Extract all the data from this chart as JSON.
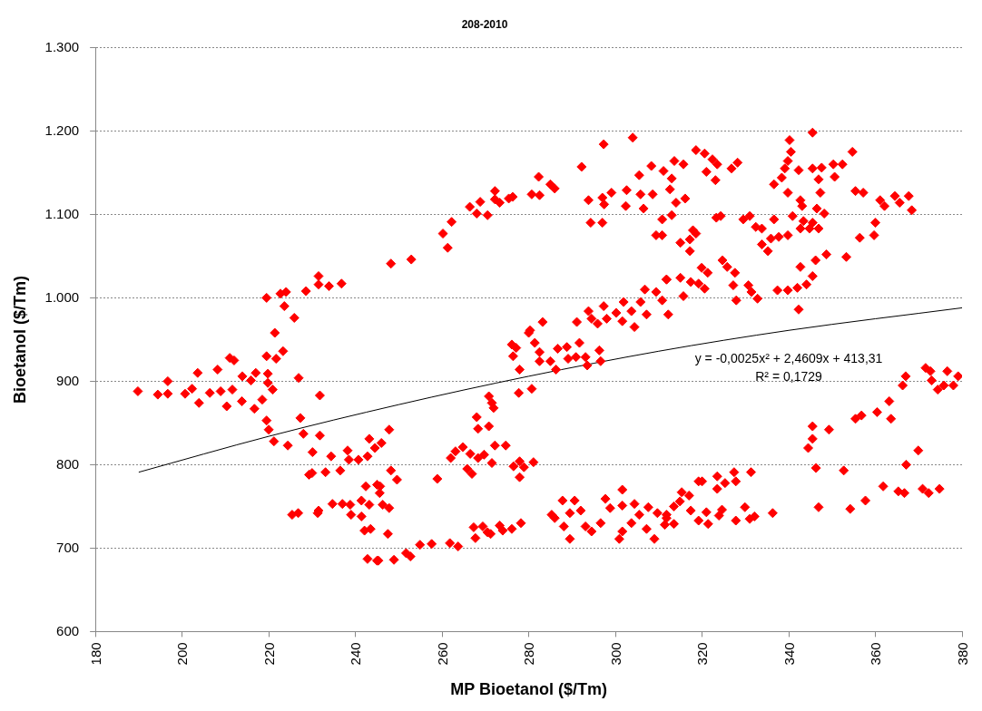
{
  "chart_data": {
    "type": "scatter",
    "title": "208-2010",
    "xlabel": "MP Bioetanol ($/Tm)",
    "ylabel": "Bioetanol ($/Tm)",
    "xlim": [
      180,
      380
    ],
    "xticks": [
      180,
      200,
      220,
      240,
      260,
      280,
      300,
      320,
      340,
      360,
      380
    ],
    "ylim": [
      600,
      1300
    ],
    "yticks": [
      600,
      700,
      800,
      900,
      {
        "value": 1000,
        "label": "1.000"
      },
      {
        "value": 1100,
        "label": "1.100"
      },
      {
        "value": 1200,
        "label": "1.200"
      },
      {
        "value": 1300,
        "label": "1.300"
      }
    ],
    "grid": "y",
    "legend": false,
    "marker": "diamond",
    "annotations": [
      "y = -0,0025x² + 2,4609x + 413,31",
      "R² = 0,1729"
    ],
    "series": [
      {
        "type": "scatter",
        "color": "#ff0000",
        "x": [
          189.8,
          194.4,
          196.7,
          196.7,
          200.7,
          202.3,
          203.6,
          203.9,
          206.4,
          208.2,
          208.9,
          210.3,
          211,
          212,
          211.6,
          213.8,
          213.9,
          215.9,
          217,
          216.7,
          218.5,
          219.5,
          219.5,
          219.8,
          219.8,
          220.9,
          219.5,
          220,
          221.2,
          221.4,
          221.7,
          223.3,
          222.7,
          224,
          223.6,
          225.9,
          224.4,
          226.9,
          228,
          227.3,
          228.6,
          231.5,
          231.5,
          233.9,
          236.8,
          231.8,
          231.8,
          230.1,
          229.3,
          230,
          233.1,
          234.4,
          236.5,
          238.2,
          238.5,
          240.7,
          242.8,
          243.2,
          244.5,
          242.4,
          245,
          245.6,
          225.4,
          226.8,
          231.5,
          231.3,
          234.7,
          237,
          238.8,
          239,
          241.4,
          241.4,
          243.2,
          242.1,
          243.5,
          242.8,
          245.3,
          246.3,
          248.2,
          252.9,
          245,
          248.9,
          251.7,
          252.7,
          254.9,
          257.6,
          261.8,
          263.7,
          248.2,
          249.6,
          247.5,
          247.8,
          246,
          245.7,
          247.8,
          258.9,
          260.2,
          261.3,
          262.2,
          266.4,
          268,
          268.8,
          270.5,
          272.2,
          272.2,
          273.3,
          275.4,
          276.3,
          280.7,
          282.3,
          282.5,
          285,
          286,
          292.2,
          293.8,
          294.3,
          297,
          297.3,
          297,
          299.1,
          297.4,
          302.6,
          302.4,
          304,
          305.5,
          305.8,
          306.5,
          308.3,
          308.6,
          309.4,
          310.8,
          310.8,
          311.1,
          262,
          263.1,
          264.8,
          265.8,
          266.9,
          266.5,
          268.3,
          269.7,
          271.5,
          272.2,
          274.7,
          268,
          268.3,
          270.8,
          270.8,
          271.5,
          271.9,
          276.5,
          277.9,
          278.9,
          277.9,
          281.1,
          277.7,
          280.7,
          276.1,
          277.1,
          276.4,
          277.9,
          280.3,
          280,
          281.4,
          283.2,
          282.5,
          282.5,
          285,
          286.7,
          286.3,
          288.8,
          289.1,
          290.9,
          291.7,
          293.1,
          293.5,
          296.3,
          296.6,
          291.1,
          293.8,
          294.5,
          295.9,
          297.3,
          298,
          300.2,
          301.6,
          301.9,
          303.7,
          304.4,
          305.8,
          306.8,
          307.2,
          309.4,
          310.8,
          311.8,
          267.3,
          267.7,
          269.4,
          270.5,
          271.2,
          273.3,
          274,
          276.1,
          278.2,
          285.3,
          286,
          287.8,
          288.1,
          289.5,
          289.5,
          290.6,
          292,
          293.1,
          294.5,
          296.6,
          297.7,
          298.8,
          301.6,
          300.9,
          301.6,
          301.6,
          303.7,
          304.4,
          305.5,
          307.2,
          307.6,
          309,
          309.7,
          311.8,
          345.5,
          340.2,
          340.5,
          339.8,
          339.1,
          338.4,
          336.6,
          339.8,
          342.3,
          345.5,
          347.6,
          346.9,
          347.3,
          350.3,
          350.6,
          352.4,
          354.7,
          342.7,
          343.1,
          346.5,
          348.2,
          340.9,
          343.4,
          345.5,
          346.9,
          344.8,
          342.7,
          336.6,
          337.7,
          335.9,
          339.8,
          333.8,
          335.2,
          333.8,
          332.4,
          329.5,
          331,
          324.3,
          323.3,
          355.4,
          357.2,
          361.1,
          362.1,
          364.5,
          365.6,
          367.7,
          368.4,
          360,
          359.7,
          356.4,
          353.3,
          348.7,
          346.2,
          342.7,
          345.5,
          344.1,
          342.3,
          342,
          339.8,
          337.4,
          332.8,
          331.4,
          330.7,
          327.9,
          327.2,
          327.6,
          325.8,
          324.7,
          321.3,
          319.9,
          319.2,
          320.6,
          317.4,
          315,
          315.7,
          311.8,
          312.2,
          318.6,
          320.6,
          322.4,
          323.5,
          321,
          323.1,
          328.2,
          326.8,
          313.6,
          315.7,
          313,
          312.6,
          316.1,
          314,
          313,
          317.9,
          317.2,
          315,
          317.2,
          318.6,
          371.6,
          372.7,
          373,
          374.4,
          376.6,
          378,
          379.1,
          375.8,
          367,
          366.3,
          363.2,
          360.4,
          363.6,
          356.8,
          355.4,
          349.3,
          345.5,
          345.5,
          344.5,
          369.9,
          367.1,
          346.3,
          352.7,
          361.8,
          365.3,
          366.7,
          370.9,
          372.3,
          374.8,
          357.7,
          354.2,
          346.9,
          336.3,
          332.1,
          331,
          329.9,
          327.8,
          331.3,
          327.4,
          327.8,
          325.3,
          323.5,
          323.5,
          320,
          319.2,
          324.6,
          323.9,
          321,
          321.4,
          319.2,
          317.4,
          317,
          315.3,
          314.9,
          313.5,
          311.8,
          313.5,
          311.4
        ],
        "values": [
          888,
          884,
          900,
          885,
          885,
          891,
          910,
          874,
          886,
          914,
          888,
          870,
          928,
          925,
          890,
          876,
          906,
          901,
          910,
          867,
          878,
          1000,
          930,
          909,
          898,
          890,
          853,
          842,
          828,
          958,
          927,
          936,
          1005,
          1007,
          990,
          976,
          823,
          904,
          837,
          856,
          1008,
          1026,
          1016,
          1014,
          1017,
          883,
          835,
          815,
          788,
          790,
          791,
          810,
          793,
          817,
          806,
          806,
          810,
          831,
          820,
          774,
          776,
          766,
          740,
          742,
          745,
          742,
          753,
          753,
          752,
          740,
          757,
          738,
          752,
          721,
          723,
          687,
          685,
          752,
          1041,
          1046,
          685,
          686,
          694,
          690,
          704,
          705,
          706,
          702,
          793,
          782,
          717,
          842,
          826,
          774,
          748,
          783,
          1077,
          1060,
          1091,
          1109,
          1101,
          1115,
          1099,
          1128,
          1118,
          1114,
          1119,
          1121,
          1124,
          1145,
          1123,
          1136,
          1131,
          1157,
          1117,
          1090,
          1090,
          1184,
          1120,
          1126,
          1112,
          1129,
          1110,
          1192,
          1147,
          1124,
          1107,
          1158,
          1124,
          1075,
          1075,
          1094,
          1152,
          808,
          816,
          821,
          795,
          789,
          813,
          808,
          812,
          802,
          823,
          823,
          857,
          843,
          846,
          882,
          874,
          868,
          798,
          804,
          797,
          785,
          803,
          886,
          891,
          944,
          940,
          930,
          914,
          961,
          958,
          946,
          971,
          935,
          924,
          924,
          939,
          914,
          941,
          927,
          929,
          946,
          929,
          919,
          937,
          924,
          971,
          984,
          975,
          969,
          990,
          975,
          982,
          972,
          995,
          984,
          965,
          995,
          1010,
          980,
          1007,
          997,
          1022,
          725,
          712,
          726,
          719,
          717,
          727,
          721,
          723,
          730,
          740,
          736,
          757,
          726,
          742,
          711,
          757,
          745,
          726,
          720,
          730,
          759,
          748,
          770,
          711,
          720,
          751,
          730,
          753,
          740,
          723,
          749,
          711,
          742,
          736,
          1198,
          1189,
          1175,
          1164,
          1155,
          1144,
          1136,
          1126,
          1153,
          1155,
          1156,
          1142,
          1126,
          1160,
          1145,
          1160,
          1175,
          1117,
          1110,
          1107,
          1101,
          1098,
          1092,
          1090,
          1083,
          1083,
          1083,
          1094,
          1073,
          1071,
          1075,
          1064,
          1056,
          1083,
          1085,
          1094,
          1098,
          1098,
          1096,
          1128,
          1126,
          1117,
          1110,
          1122,
          1114,
          1122,
          1105,
          1090,
          1075,
          1072,
          1049,
          1052,
          1045,
          1037,
          1026,
          1016,
          986,
          1012,
          1009,
          1009,
          999,
          1007,
          1015,
          997,
          1015,
          1030,
          1037,
          1045,
          1030,
          1036,
          1017,
          1011,
          1019,
          1024,
          1002,
          1022,
          980,
          1177,
          1173,
          1166,
          1160,
          1151,
          1141,
          1162,
          1155,
          1164,
          1160,
          1143,
          1130,
          1119,
          1114,
          1099,
          1081,
          1070,
          1066,
          1056,
          1077,
          916,
          912,
          901,
          890,
          912,
          895,
          906,
          895,
          906,
          895,
          876,
          863,
          855,
          859,
          855,
          842,
          846,
          831,
          820,
          817,
          800,
          796,
          793,
          774,
          768,
          766,
          771,
          766,
          771,
          757,
          747,
          749,
          742,
          738,
          735,
          749,
          733,
          791,
          791,
          780,
          778,
          786,
          771,
          780,
          780,
          746,
          739,
          743,
          729,
          733,
          745,
          763,
          767,
          756,
          750,
          740,
          729,
          728
        ]
      },
      {
        "type": "line",
        "color": "#000000",
        "marker": "none",
        "x": [
          190,
          220,
          250,
          280,
          310,
          340,
          380
        ],
        "values": [
          791,
          834,
          872,
          906,
          936,
          961,
          988
        ]
      }
    ]
  }
}
